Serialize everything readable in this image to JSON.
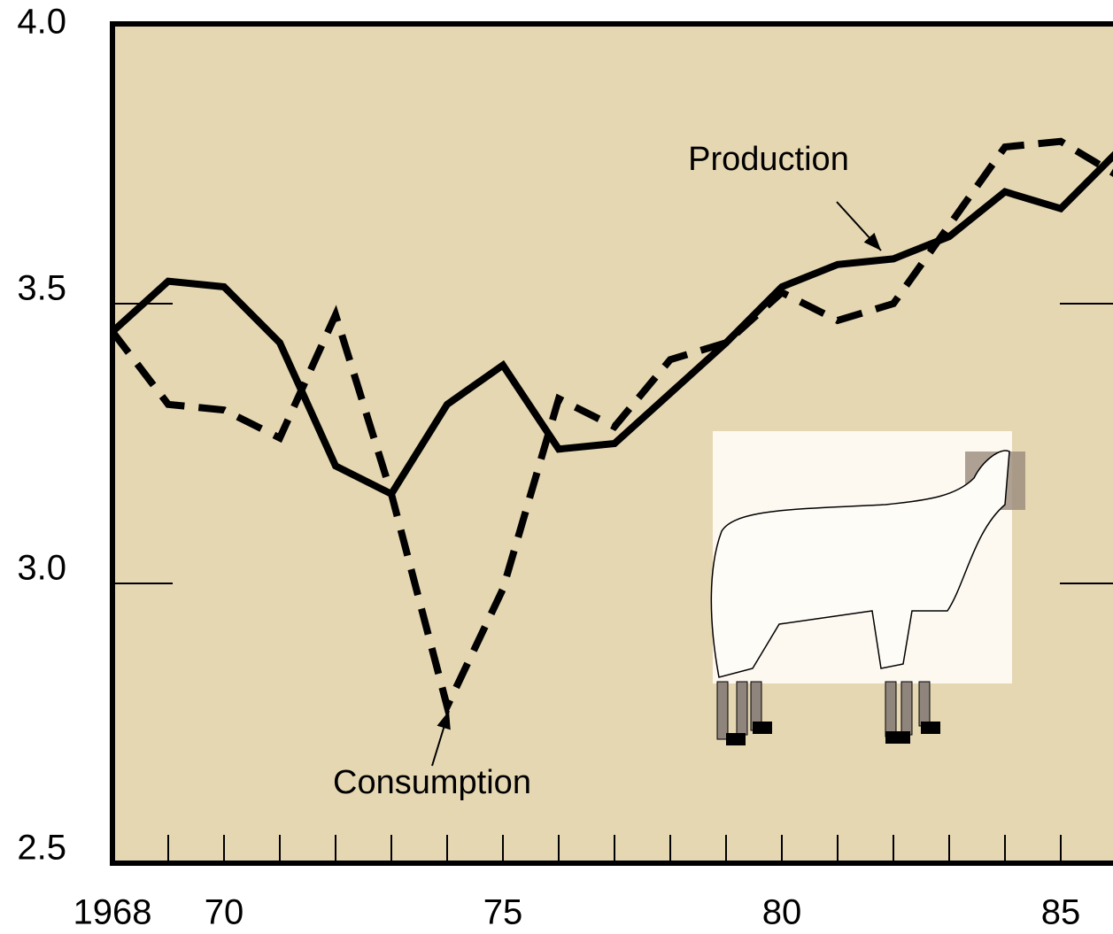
{
  "chart_data": {
    "type": "line",
    "x": [
      1968,
      1969,
      1970,
      1971,
      1972,
      1973,
      1974,
      1975,
      1976,
      1977,
      1978,
      1979,
      1980,
      1981,
      1982,
      1983,
      1984,
      1985,
      1986
    ],
    "series": [
      {
        "name": "Production",
        "color": "#000000",
        "dash": false,
        "values": [
          3.45,
          3.54,
          3.53,
          3.43,
          3.21,
          3.16,
          3.32,
          3.39,
          3.24,
          3.25,
          3.34,
          3.43,
          3.53,
          3.57,
          3.58,
          3.62,
          3.7,
          3.67,
          3.77
        ]
      },
      {
        "name": "Consumption",
        "color": "#000000",
        "dash": true,
        "values": [
          3.45,
          3.32,
          3.31,
          3.26,
          3.48,
          3.16,
          2.78,
          2.99,
          3.33,
          3.28,
          3.4,
          3.43,
          3.52,
          3.47,
          3.5,
          3.64,
          3.78,
          3.79,
          3.73
        ]
      }
    ],
    "annotations": [
      "Production",
      "Consumption"
    ],
    "xlim": [
      1968,
      1986
    ],
    "xticks": [
      {
        "value": 1968,
        "label": "1968"
      },
      {
        "value": 1970,
        "label": "70"
      },
      {
        "value": 1975,
        "label": "75"
      },
      {
        "value": 1980,
        "label": "80"
      },
      {
        "value": 1985,
        "label": "85"
      }
    ],
    "ylim": [
      2.5,
      4.0
    ],
    "yticks": [
      {
        "value": 2.5,
        "label": "2.5"
      },
      {
        "value": 3.0,
        "label": "3.0"
      },
      {
        "value": 3.5,
        "label": "3.5"
      },
      {
        "value": 4.0,
        "label": "4.0"
      }
    ],
    "background": "#e6d7b3"
  }
}
